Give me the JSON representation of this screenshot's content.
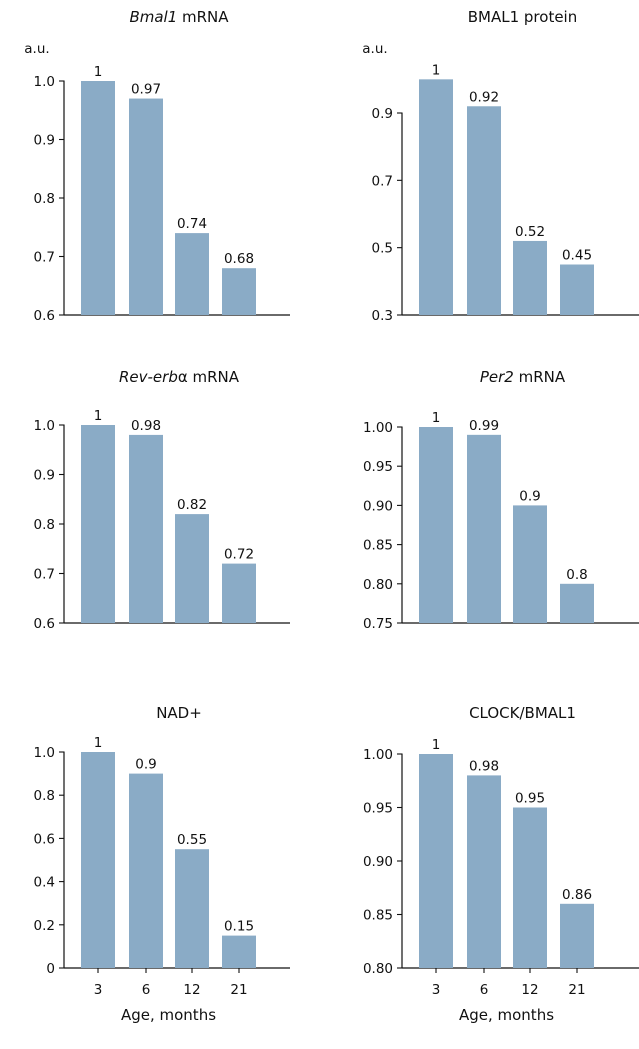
{
  "figure": {
    "bar_color": "#8AABC6",
    "axis_color": "#111111"
  },
  "chart_data": [
    {
      "type": "bar",
      "title": "Bmal1 mRNA",
      "title_parts": [
        {
          "text": "Bmal1",
          "italic": true
        },
        {
          "text": " mRNA",
          "italic": false
        }
      ],
      "unit_label": "a.u.",
      "categories": [
        "3",
        "6",
        "12",
        "21"
      ],
      "values": [
        1,
        0.97,
        0.74,
        0.68
      ],
      "data_labels": [
        "1",
        "0.97",
        "0.74",
        "0.68"
      ],
      "ylim": [
        0.6,
        1.0
      ],
      "yticks": [
        0.6,
        0.7,
        0.8,
        0.9,
        1.0
      ],
      "ytick_labels": [
        "0.6",
        "0.7",
        "0.8",
        "0.9",
        "1.0"
      ],
      "show_xticks": false,
      "xlabel": ""
    },
    {
      "type": "bar",
      "title": "BMAL1 protein",
      "title_parts": [
        {
          "text": "BMAL1 protein",
          "italic": false
        }
      ],
      "unit_label": "a.u.",
      "categories": [
        "3",
        "6",
        "12",
        "21"
      ],
      "values": [
        1,
        0.92,
        0.52,
        0.45
      ],
      "data_labels": [
        "1",
        "0.92",
        "0.52",
        "0.45"
      ],
      "ylim": [
        0.3,
        1.0
      ],
      "yticks": [
        0.3,
        0.5,
        0.7,
        0.9
      ],
      "ytick_labels": [
        "0.3",
        "0.5",
        "0.7",
        "0.9"
      ],
      "show_xticks": false,
      "xlabel": ""
    },
    {
      "type": "bar",
      "title": "Rev-erbα mRNA",
      "title_parts": [
        {
          "text": "Rev-erb",
          "italic": true
        },
        {
          "text": "α mRNA",
          "italic": false
        }
      ],
      "unit_label": "",
      "categories": [
        "3",
        "6",
        "12",
        "21"
      ],
      "values": [
        1,
        0.98,
        0.82,
        0.72
      ],
      "data_labels": [
        "1",
        "0.98",
        "0.82",
        "0.72"
      ],
      "ylim": [
        0.6,
        1.0
      ],
      "yticks": [
        0.6,
        0.7,
        0.8,
        0.9,
        1.0
      ],
      "ytick_labels": [
        "0.6",
        "0.7",
        "0.8",
        "0.9",
        "1.0"
      ],
      "show_xticks": false,
      "xlabel": ""
    },
    {
      "type": "bar",
      "title": "Per2 mRNA",
      "title_parts": [
        {
          "text": "Per2",
          "italic": true
        },
        {
          "text": " mRNA",
          "italic": false
        }
      ],
      "unit_label": "",
      "categories": [
        "3",
        "6",
        "12",
        "21"
      ],
      "values": [
        1,
        0.99,
        0.9,
        0.8
      ],
      "data_labels": [
        "1",
        "0.99",
        "0.9",
        "0.8"
      ],
      "ylim": [
        0.75,
        1.0
      ],
      "yticks": [
        0.75,
        0.8,
        0.85,
        0.9,
        0.95,
        1.0
      ],
      "ytick_labels": [
        "0.75",
        "0.80",
        "0.85",
        "0.90",
        "0.95",
        "1.00"
      ],
      "show_xticks": false,
      "xlabel": ""
    },
    {
      "type": "bar",
      "title": "NAD+",
      "title_parts": [
        {
          "text": "NAD+",
          "italic": false
        }
      ],
      "unit_label": "",
      "categories": [
        "3",
        "6",
        "12",
        "21"
      ],
      "values": [
        1,
        0.9,
        0.55,
        0.15
      ],
      "data_labels": [
        "1",
        "0.9",
        "0.55",
        "0.15"
      ],
      "ylim": [
        0,
        1.0
      ],
      "yticks": [
        0,
        0.2,
        0.4,
        0.6,
        0.8,
        1.0
      ],
      "ytick_labels": [
        "0",
        "0.2",
        "0.4",
        "0.6",
        "0.8",
        "1.0"
      ],
      "show_xticks": true,
      "xlabel": "Age, months"
    },
    {
      "type": "bar",
      "title": "CLOCK/BMAL1",
      "title_parts": [
        {
          "text": "CLOCK/BMAL1",
          "italic": false
        }
      ],
      "unit_label": "",
      "categories": [
        "3",
        "6",
        "12",
        "21"
      ],
      "values": [
        1,
        0.98,
        0.95,
        0.86
      ],
      "data_labels": [
        "1",
        "0.98",
        "0.95",
        "0.86"
      ],
      "ylim": [
        0.8,
        1.0
      ],
      "yticks": [
        0.8,
        0.85,
        0.9,
        0.95,
        1.0
      ],
      "ytick_labels": [
        "0.80",
        "0.85",
        "0.90",
        "0.95",
        "1.00"
      ],
      "show_xticks": true,
      "xlabel": "Age, months"
    }
  ]
}
